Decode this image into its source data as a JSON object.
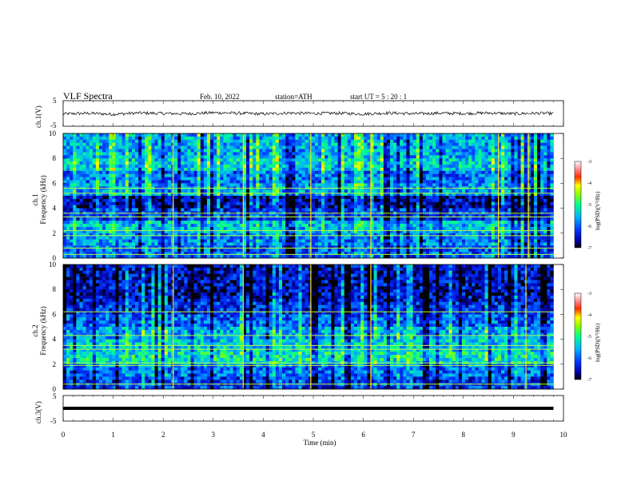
{
  "header": {
    "title": "VLF  Spectra",
    "date": "Feb. 10, 2022",
    "station": "station=ATH",
    "start_ut": "start  UT  =    5  : 20 : 1"
  },
  "x_axis": {
    "label": "Time  (min)",
    "ticks": [
      "0",
      "1",
      "2",
      "3",
      "4",
      "5",
      "6",
      "7",
      "8",
      "9",
      "10"
    ]
  },
  "panel_ch1": {
    "ylabel": "ch.1(V)",
    "ticks": [
      "5",
      "-5"
    ]
  },
  "panel_spec1": {
    "ylabel_top": "ch.1",
    "ylabel": "Frequency  (kHz)",
    "ticks": [
      "10",
      "8",
      "6",
      "4",
      "2",
      "0"
    ]
  },
  "panel_spec2": {
    "ylabel_top": "ch.2",
    "ylabel": "Frequency  (kHz)",
    "ticks": [
      "10",
      "8",
      "6",
      "4",
      "2",
      "0"
    ]
  },
  "panel_ch3": {
    "ylabel": "ch.3(V)",
    "ticks": [
      "5",
      "-5"
    ]
  },
  "colorbar": {
    "label": "log(PSD)(V²/Hz)",
    "ticks": [
      "-3",
      "-4",
      "-5",
      "-6",
      "-7"
    ],
    "colors": [
      "#000000",
      "#0000c8",
      "#0050ff",
      "#00c8ff",
      "#00ff80",
      "#ffff00",
      "#ff0000",
      "#ffffff"
    ]
  },
  "chart_data": [
    {
      "type": "line",
      "name": "ch.1 waveform",
      "xlabel": "Time (min)",
      "ylabel": "ch.1(V)",
      "xlim": [
        0,
        10
      ],
      "ylim": [
        -5,
        5
      ],
      "x": [
        0,
        0.5,
        1,
        1.5,
        2,
        2.5,
        3,
        3.5,
        4,
        4.5,
        5,
        5.5,
        6,
        6.5,
        7,
        7.5,
        8,
        8.5,
        9,
        9.5,
        9.8
      ],
      "y": [
        -0.2,
        0.1,
        -0.3,
        0.2,
        0,
        -0.1,
        0.3,
        0.1,
        -0.2,
        0.2,
        0,
        0.1,
        -0.2,
        0.2,
        -0.1,
        0.1,
        0,
        0.2,
        -0.1,
        0.1,
        0
      ]
    },
    {
      "type": "heatmap",
      "name": "ch.1 spectrogram",
      "xlabel": "Time (min)",
      "ylabel": "Frequency (kHz)",
      "xlim": [
        0,
        10
      ],
      "ylim": [
        0,
        10
      ],
      "data_end_min": 9.8,
      "colorbar_range": [
        -7,
        -3
      ],
      "band_levels": [
        {
          "freq_khz": [
            0,
            1
          ],
          "log_psd": -6.0
        },
        {
          "freq_khz": [
            1,
            2
          ],
          "log_psd": -5.8
        },
        {
          "freq_khz": [
            2,
            3
          ],
          "log_psd": -5.5
        },
        {
          "freq_khz": [
            3,
            4
          ],
          "log_psd": -6.2
        },
        {
          "freq_khz": [
            4,
            5
          ],
          "log_psd": -6.6
        },
        {
          "freq_khz": [
            5,
            6
          ],
          "log_psd": -5.7
        },
        {
          "freq_khz": [
            6,
            7
          ],
          "log_psd": -5.9
        },
        {
          "freq_khz": [
            7,
            8
          ],
          "log_psd": -5.4
        },
        {
          "freq_khz": [
            8,
            10
          ],
          "log_psd": -5.6
        }
      ],
      "tone_lines_khz": [
        0.3,
        0.8,
        1.8,
        2.2,
        3.3,
        3.6,
        5.2,
        5.6
      ],
      "impulse_times_min": [
        2.2,
        3.6,
        4.95,
        6.15,
        8.7,
        9.3
      ]
    },
    {
      "type": "heatmap",
      "name": "ch.2 spectrogram",
      "xlabel": "Time (min)",
      "ylabel": "Frequency (kHz)",
      "xlim": [
        0,
        10
      ],
      "ylim": [
        0,
        10
      ],
      "data_end_min": 9.8,
      "colorbar_range": [
        -7,
        -3
      ],
      "band_levels": [
        {
          "freq_khz": [
            0,
            1
          ],
          "log_psd": -6.2
        },
        {
          "freq_khz": [
            1,
            2
          ],
          "log_psd": -5.9
        },
        {
          "freq_khz": [
            2,
            3
          ],
          "log_psd": -5.2
        },
        {
          "freq_khz": [
            3,
            4
          ],
          "log_psd": -5.4
        },
        {
          "freq_khz": [
            4,
            5
          ],
          "log_psd": -5.6
        },
        {
          "freq_khz": [
            5,
            6
          ],
          "log_psd": -6.0
        },
        {
          "freq_khz": [
            6,
            7
          ],
          "log_psd": -6.3
        },
        {
          "freq_khz": [
            7,
            10
          ],
          "log_psd": -6.5
        }
      ],
      "tone_lines_khz": [
        0.4,
        1.9,
        2.1,
        3.2,
        3.5,
        4.3,
        6.2
      ],
      "impulse_times_min": [
        2.2,
        3.6,
        4.95,
        6.15,
        9.25
      ]
    },
    {
      "type": "line",
      "name": "ch.3 waveform",
      "xlabel": "Time (min)",
      "ylabel": "ch.3(V)",
      "xlim": [
        0,
        10
      ],
      "ylim": [
        -5,
        5
      ],
      "x": [
        0,
        9.8
      ],
      "y": [
        -0.4,
        -0.4
      ]
    }
  ]
}
